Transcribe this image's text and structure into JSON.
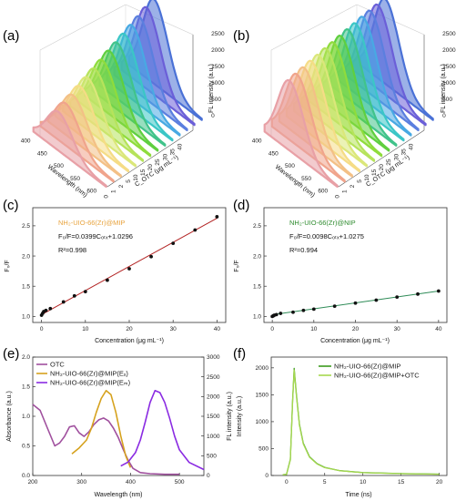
{
  "figure": {
    "panel_labels": [
      "(a)",
      "(b)",
      "(c)",
      "(d)",
      "(e)",
      "(f)"
    ]
  },
  "chart_data": [
    {
      "panel": "(a)",
      "type": "area",
      "view": "3d-waterfall",
      "xlabel": "Wavelength (nm)",
      "ylabel": "C_OTC (μg mL⁻¹)",
      "zlabel": "FL intensity (a.u.)",
      "x_ticks": [
        "400",
        "450",
        "500",
        "550",
        "600"
      ],
      "y_ticks": [
        "0",
        "1",
        "2",
        "5",
        "10",
        "15",
        "20",
        "25",
        "30",
        "35",
        "40"
      ],
      "z_ticks": [
        "0",
        "500",
        "1000",
        "1500",
        "2000",
        "2500"
      ],
      "peak_wavelength": 455,
      "series_peaks": [
        1150,
        1250,
        1340,
        1450,
        1560,
        1670,
        1780,
        1900,
        2000,
        2110,
        2220,
        2330,
        2450,
        2550
      ],
      "colors": [
        "#e8a0a6",
        "#f0a48c",
        "#f3c086",
        "#f5dc86",
        "#dbe77a",
        "#b6e35b",
        "#8fdc3c",
        "#5fcf3f",
        "#41c38a",
        "#3bc6c6",
        "#48a9e3",
        "#5b7fdf",
        "#6b5fd8",
        "#4a71d6"
      ]
    },
    {
      "panel": "(b)",
      "type": "area",
      "view": "3d-waterfall",
      "xlabel": "Wavelength (nm)",
      "ylabel": "C_OTC (μg mL⁻¹)",
      "zlabel": "FL intensity (a.u.)",
      "x_ticks": [
        "400",
        "450",
        "500",
        "550",
        "600"
      ],
      "y_ticks": [
        "0",
        "1",
        "2",
        "5",
        "10",
        "15",
        "20",
        "25",
        "30",
        "35",
        "40"
      ],
      "z_ticks": [
        "0",
        "500",
        "1000",
        "1500",
        "2000",
        "2500"
      ],
      "peak_wavelength": 455,
      "series_peaks": [
        2100,
        2140,
        2180,
        2220,
        2250,
        2290,
        2320,
        2360,
        2400,
        2430,
        2470,
        2500,
        2530,
        2560
      ],
      "colors": [
        "#e8a0a6",
        "#f0a48c",
        "#f3c086",
        "#f5dc86",
        "#dbe77a",
        "#b6e35b",
        "#8fdc3c",
        "#5fcf3f",
        "#41c38a",
        "#3bc6c6",
        "#48a9e3",
        "#5b7fdf",
        "#6b5fd8",
        "#4a71d6"
      ]
    },
    {
      "panel": "(c)",
      "type": "scatter",
      "xlabel": "Concentration (μg mL⁻¹)",
      "ylabel": "F₀/F",
      "xlim": [
        -2,
        42
      ],
      "ylim": [
        0.9,
        2.8
      ],
      "x_ticks": [
        0,
        10,
        20,
        30,
        40
      ],
      "y_ticks": [
        1.0,
        1.5,
        2.0,
        2.5
      ],
      "x": [
        0,
        0.25,
        0.5,
        1,
        2,
        5,
        7.5,
        10,
        15,
        20,
        25,
        30,
        35,
        40
      ],
      "y": [
        1.02,
        1.05,
        1.08,
        1.1,
        1.13,
        1.24,
        1.34,
        1.41,
        1.6,
        1.79,
        1.99,
        2.21,
        2.43,
        2.65
      ],
      "fit": {
        "slope": 0.0399,
        "intercept": 1.0296,
        "color": "#b22222"
      },
      "annotation": {
        "material": "NH₂-UIO-66(Zr)@MIP",
        "material_color": "#e8a33d",
        "equation": "F₀/F=0.0399Cₒₜₓ+1.0296",
        "r2": "R²=0.998"
      }
    },
    {
      "panel": "(d)",
      "type": "scatter",
      "xlabel": "Concentration (μg mL⁻¹)",
      "ylabel": "F₀/F",
      "xlim": [
        -2,
        42
      ],
      "ylim": [
        0.9,
        2.8
      ],
      "x_ticks": [
        0,
        10,
        20,
        30,
        40
      ],
      "y_ticks": [
        1.0,
        1.5,
        2.0,
        2.5
      ],
      "x": [
        0,
        0.25,
        0.5,
        1,
        2,
        5,
        7.5,
        10,
        15,
        20,
        25,
        30,
        35,
        40
      ],
      "y": [
        1.0,
        1.01,
        1.02,
        1.03,
        1.05,
        1.07,
        1.1,
        1.12,
        1.17,
        1.22,
        1.27,
        1.32,
        1.37,
        1.42
      ],
      "fit": {
        "slope": 0.0098,
        "intercept": 1.0275,
        "color": "#2e8b57"
      },
      "annotation": {
        "material": "NH₂-UIO-66(Zr)@NIP",
        "material_color": "#2e8b2e",
        "equation": "F₀/F=0.0098Cₒₜₓ+1.0275",
        "r2": "R²=0.994"
      }
    },
    {
      "panel": "(e)",
      "type": "line",
      "xlabel": "Wavelength (nm)",
      "ylabel": "Absorbance (a.u.)",
      "y2label": "FL intensity (a.u.)",
      "xlim": [
        200,
        550
      ],
      "ylim": [
        0,
        2.0
      ],
      "y2lim": [
        0,
        3000
      ],
      "x_ticks": [
        200,
        300,
        400,
        500
      ],
      "y_ticks": [
        0.0,
        0.5,
        1.0,
        1.5,
        2.0
      ],
      "y2_ticks": [
        0,
        500,
        1000,
        1500,
        2000,
        2500,
        3000
      ],
      "series": [
        {
          "name": "OTC",
          "axis": "left",
          "color": "#a0509e",
          "x": [
            200,
            215,
            230,
            245,
            255,
            265,
            275,
            285,
            295,
            305,
            315,
            325,
            335,
            345,
            355,
            365,
            375,
            385,
            395,
            405,
            420,
            440,
            470,
            500
          ],
          "y": [
            1.2,
            1.1,
            0.8,
            0.5,
            0.55,
            0.66,
            0.82,
            0.84,
            0.72,
            0.66,
            0.74,
            0.86,
            0.94,
            0.97,
            0.92,
            0.8,
            0.64,
            0.44,
            0.26,
            0.12,
            0.05,
            0.03,
            0.02,
            0.02
          ]
        },
        {
          "name": "NH₂-UIO-66(Zr)@MIP(Eₓ)",
          "axis": "right",
          "color": "#d6a21e",
          "x": [
            280,
            295,
            310,
            320,
            330,
            340,
            350,
            360,
            370,
            380,
            390,
            400
          ],
          "y": [
            550,
            700,
            900,
            1200,
            1600,
            1950,
            2150,
            2050,
            1600,
            1000,
            500,
            200
          ]
        },
        {
          "name": "NH₂-UIO-66(Zr)@MIP(Eₘ)",
          "axis": "right",
          "color": "#8a2be2",
          "x": [
            380,
            395,
            410,
            420,
            430,
            440,
            450,
            460,
            470,
            480,
            490,
            500,
            520,
            550
          ],
          "y": [
            240,
            340,
            580,
            900,
            1350,
            1850,
            2150,
            2100,
            1850,
            1450,
            1000,
            650,
            330,
            150
          ]
        }
      ]
    },
    {
      "panel": "(f)",
      "type": "line",
      "xlabel": "Time (ns)",
      "ylabel": "Intensity (a.u.)",
      "xlim": [
        -2,
        21
      ],
      "ylim": [
        0,
        2200
      ],
      "x_ticks": [
        0,
        5,
        10,
        15,
        20
      ],
      "y_ticks": [
        0,
        500,
        1000,
        1500,
        2000
      ],
      "series": [
        {
          "name": "NH₂-UIO-66(Zr)@MIP",
          "color": "#3a9a1e",
          "x": [
            -0.5,
            0,
            0.5,
            0.8,
            1.0,
            1.3,
            1.7,
            2.2,
            3,
            4,
            5,
            7,
            10,
            15,
            20
          ],
          "y": [
            15,
            20,
            300,
            1400,
            1990,
            1500,
            950,
            600,
            350,
            220,
            150,
            90,
            55,
            35,
            25
          ]
        },
        {
          "name": "NH₂-UIO-66(Zr)@MIP+OTC",
          "color": "#a6d84f",
          "x": [
            -0.5,
            0,
            0.5,
            0.8,
            1.0,
            1.3,
            1.7,
            2.2,
            3,
            4,
            5,
            7,
            10,
            15,
            20
          ],
          "y": [
            15,
            20,
            290,
            1380,
            1960,
            1470,
            930,
            585,
            340,
            215,
            146,
            88,
            53,
            34,
            24
          ]
        }
      ]
    }
  ]
}
